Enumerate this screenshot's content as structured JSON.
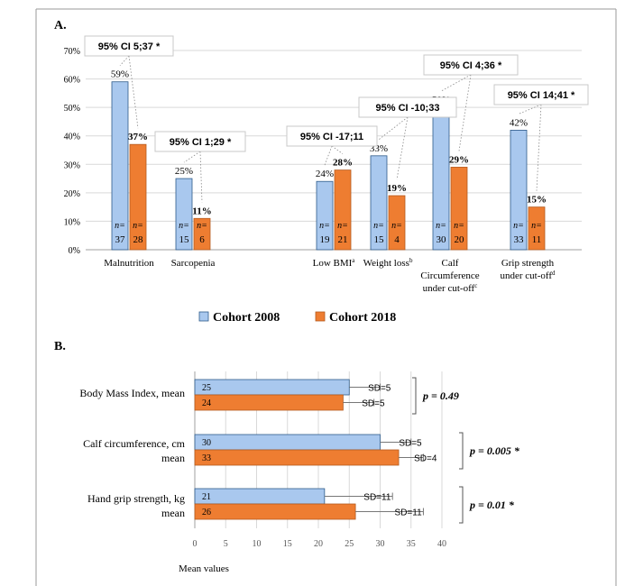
{
  "colors": {
    "cohort2008": "#a9c8ee",
    "cohort2018": "#ee7d31",
    "bar_edge": "#2d5b8a",
    "grid": "#d9d9d9",
    "axis": "#a0a0a0",
    "callout_border": "#c8c8c8",
    "text": "#000000"
  },
  "chart_data": [
    {
      "panel": "A.",
      "type": "bar",
      "ylim": [
        0,
        70
      ],
      "yticks": [
        "0%",
        "10%",
        "20%",
        "30%",
        "40%",
        "50%",
        "60%",
        "70%"
      ],
      "categories": [
        {
          "label": [
            "Malnutrition"
          ],
          "sup": ""
        },
        {
          "label": [
            "Sarcopenia"
          ],
          "sup": ""
        },
        {
          "label": [
            "Low BMI"
          ],
          "sup": "a"
        },
        {
          "label": [
            "Weight loss"
          ],
          "sup": "b"
        },
        {
          "label": [
            "Calf",
            "Circumference",
            "under cut-off"
          ],
          "sup": "c"
        },
        {
          "label": [
            "Grip strength",
            "under cut-off"
          ],
          "sup": "d"
        }
      ],
      "series": [
        {
          "name": "Cohort 2008",
          "values": [
            59,
            25,
            24,
            33,
            50,
            42
          ],
          "value_labels": [
            "59%",
            "25%",
            "24%",
            "33%",
            "50%",
            "42%"
          ],
          "n": [
            "37",
            "15",
            "19",
            "15",
            "30",
            "33"
          ]
        },
        {
          "name": "Cohort 2018",
          "values": [
            37,
            11,
            28,
            19,
            29,
            15
          ],
          "value_labels": [
            "37%",
            "11%",
            "28%",
            "19%",
            "29%",
            "15%"
          ],
          "n": [
            "28",
            "6",
            "21",
            "4",
            "20",
            "11"
          ]
        }
      ],
      "n_prefix": "n=",
      "annotations": [
        "95% CI 5;37 *",
        "95% CI 1;29 *",
        "95% CI -17;11",
        "95% CI -10;33",
        "95% CI 4;36 *",
        "95% CI 14;41 *"
      ],
      "legend": [
        "Cohort 2008",
        "Cohort 2018"
      ]
    },
    {
      "panel": "B.",
      "type": "bar",
      "orientation": "horizontal",
      "xlim": [
        0,
        40
      ],
      "xticks": [
        "0",
        "5",
        "10",
        "15",
        "20",
        "25",
        "30",
        "35",
        "40"
      ],
      "xlabel": "Mean values",
      "categories": [
        {
          "label": [
            "Body Mass Index, mean"
          ]
        },
        {
          "label": [
            "Calf circumference, cm",
            "mean"
          ]
        },
        {
          "label": [
            "Hand grip strength, kg",
            "mean"
          ]
        }
      ],
      "series": [
        {
          "name": "Cohort 2008",
          "values": [
            25,
            30,
            21
          ],
          "value_labels": [
            "25",
            "30",
            "21"
          ],
          "sd": [
            5,
            5,
            11
          ],
          "sd_labels": [
            "SD=5",
            "SD=5",
            "SD=11"
          ]
        },
        {
          "name": "Cohort 2018",
          "values": [
            24,
            33,
            26
          ],
          "value_labels": [
            "24",
            "33",
            "26"
          ],
          "sd": [
            5,
            4,
            11
          ],
          "sd_labels": [
            "SD=5",
            "SD=4",
            "SD=11"
          ]
        }
      ],
      "p_values": [
        "p = 0.49",
        "p = 0.005 *",
        "p = 0.01 *"
      ]
    }
  ]
}
